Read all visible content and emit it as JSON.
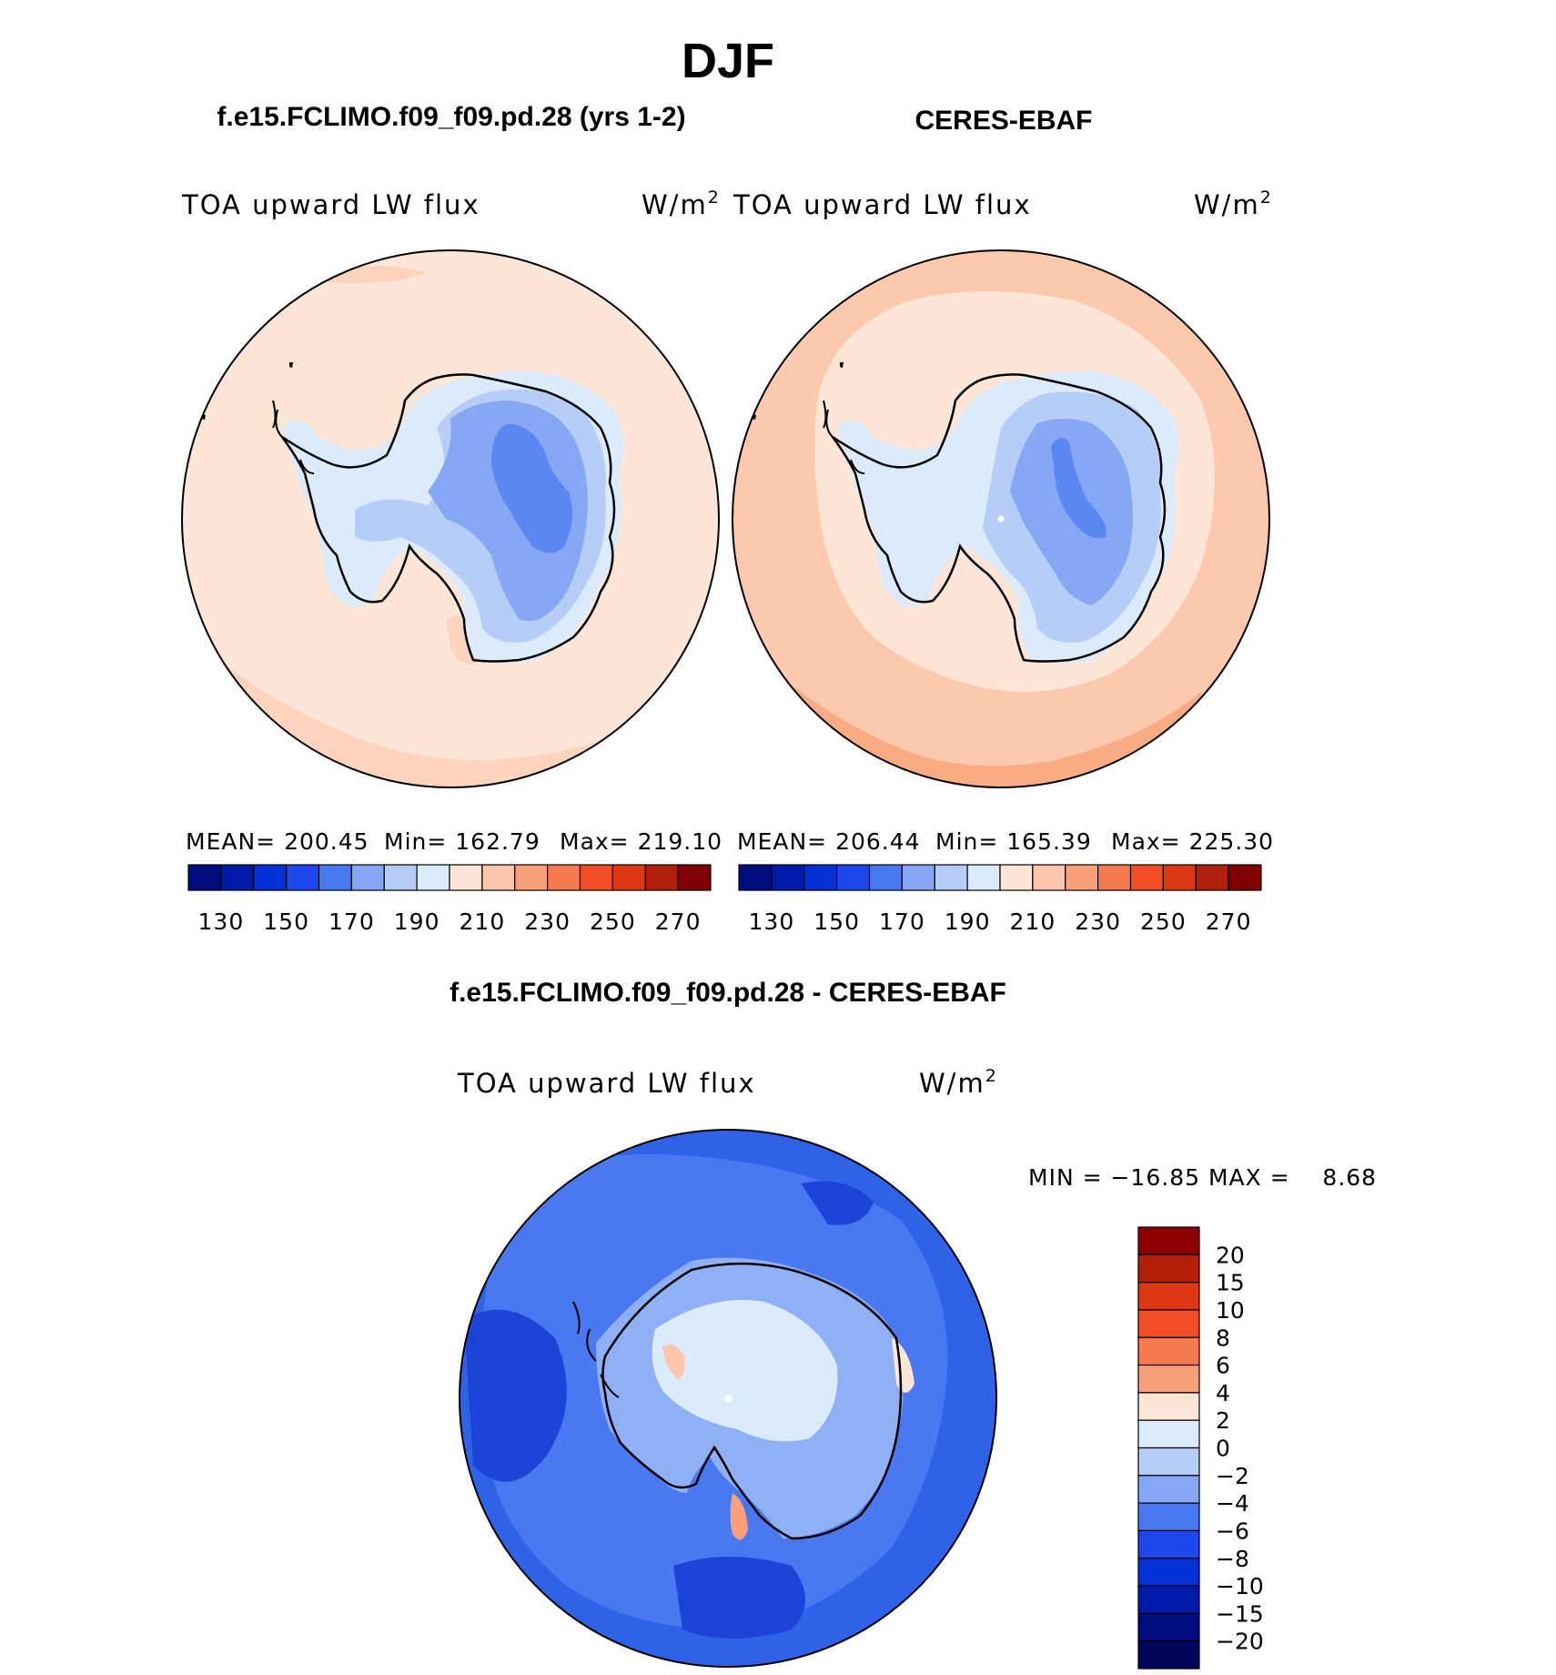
{
  "page_title": "DJF",
  "left_panel": {
    "title": "f.e15.FCLIMO.f09_f09.pd.28 (yrs 1-2)",
    "variable": "TOA upward LW flux",
    "units": "W/m",
    "units_sup": "2",
    "stats": {
      "mean": "MEAN= 200.45",
      "min": "Min= 162.79",
      "max": "Max= 219.10"
    },
    "colorbar": {
      "ticks": [
        "130",
        "150",
        "170",
        "190",
        "210",
        "230",
        "250",
        "270"
      ],
      "colors": [
        "#000c7d",
        "#0019a8",
        "#0530d4",
        "#1f47ee",
        "#4a78f0",
        "#86a7f4",
        "#b6cdf8",
        "#dcebfb",
        "#fde6d5",
        "#fcc5ac",
        "#f9a07b",
        "#f6794f",
        "#f24e26",
        "#dc3712",
        "#b21f0c",
        "#7f0000"
      ]
    }
  },
  "right_panel": {
    "title": "CERES-EBAF",
    "variable": "TOA upward LW flux",
    "units": "W/m",
    "units_sup": "2",
    "stats": {
      "mean": "MEAN= 206.44",
      "min": "Min= 165.39",
      "max": "Max= 225.30"
    },
    "colorbar": {
      "ticks": [
        "130",
        "150",
        "170",
        "190",
        "210",
        "230",
        "250",
        "270"
      ],
      "colors": [
        "#000c7d",
        "#0019a8",
        "#0530d4",
        "#1f47ee",
        "#4a78f0",
        "#86a7f4",
        "#b6cdf8",
        "#dcebfb",
        "#fde6d5",
        "#fcc5ac",
        "#f9a07b",
        "#f6794f",
        "#f24e26",
        "#dc3712",
        "#b21f0c",
        "#7f0000"
      ]
    }
  },
  "diff_panel": {
    "title": "f.e15.FCLIMO.f09_f09.pd.28 - CERES-EBAF",
    "variable": "TOA upward LW flux",
    "units": "W/m",
    "units_sup": "2",
    "min_max": "MIN = −16.85 MAX =    8.68",
    "colorbar": {
      "ticks": [
        "20",
        "15",
        "10",
        "8",
        "6",
        "4",
        "2",
        "0",
        "−2",
        "−4",
        "−6",
        "−8",
        "−10",
        "−15",
        "−20"
      ],
      "colors": [
        "#8b0000",
        "#b31e0a",
        "#dc3712",
        "#f24e26",
        "#f6794f",
        "#f9a07b",
        "#fde6d5",
        "#dcebfb",
        "#b6cdf8",
        "#86a7f4",
        "#4a78f0",
        "#1f47ee",
        "#0530d4",
        "#0019a8",
        "#000c7d",
        "#00065a"
      ]
    }
  },
  "palette": {
    "ocean_model": "#fde6d5",
    "ocean_model_warm": "#fcd3bc",
    "ocean_obs": "#fcc9ae",
    "ocean_obs_warm": "#f9ab84",
    "ice_blue_1": "#dcebfb",
    "ice_blue_2": "#b6cdf8",
    "ice_blue_3": "#86a7f4",
    "ice_blue_4": "#5b87f1",
    "diff_ocean": "#2f62e6",
    "diff_ocean_dark": "#1c45d8",
    "diff_land": "#8fb0f4",
    "coast": "#000000"
  }
}
